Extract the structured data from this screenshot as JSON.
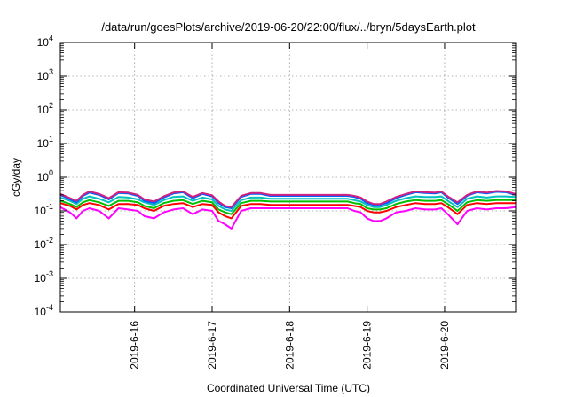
{
  "chart_data": {
    "type": "line",
    "title": "/data/run/goesPlots/archive/2019-06-20/22:00/flux/../bryn/5daysEarth.plot",
    "xlabel": "Coordinated Universal Time (UTC)",
    "ylabel": "cGy/day",
    "yscale": "log",
    "ylim": [
      0.0001,
      10000
    ],
    "y_ticks": [
      {
        "value": 0.0001,
        "base": "10",
        "exp": "-4"
      },
      {
        "value": 0.001,
        "base": "10",
        "exp": "-3"
      },
      {
        "value": 0.01,
        "base": "10",
        "exp": "-2"
      },
      {
        "value": 0.1,
        "base": "10",
        "exp": "-1"
      },
      {
        "value": 1,
        "base": "10",
        "exp": "0"
      },
      {
        "value": 10,
        "base": "10",
        "exp": "1"
      },
      {
        "value": 100,
        "base": "10",
        "exp": "2"
      },
      {
        "value": 1000,
        "base": "10",
        "exp": "3"
      },
      {
        "value": 10000,
        "base": "10",
        "exp": "4"
      }
    ],
    "xlim": [
      "2019-06-15T01:00",
      "2019-06-20T22:00"
    ],
    "x_ticks": [
      {
        "value": "2019-06-16T00:00",
        "label": "2019-6-16"
      },
      {
        "value": "2019-06-17T00:00",
        "label": "2019-6-17"
      },
      {
        "value": "2019-06-18T00:00",
        "label": "2019-6-18"
      },
      {
        "value": "2019-06-19T00:00",
        "label": "2019-6-19"
      },
      {
        "value": "2019-06-20T00:00",
        "label": "2019-6-20"
      }
    ],
    "grid": true,
    "legend": "none",
    "series": [
      {
        "color": "#ff00ff",
        "x": [
          "2019-06-15T01:00",
          "2019-06-15T04:00",
          "2019-06-15T06:00",
          "2019-06-15T08:00",
          "2019-06-15T10:00",
          "2019-06-15T13:00",
          "2019-06-15T16:00",
          "2019-06-15T19:00",
          "2019-06-15T22:00",
          "2019-06-16T01:00",
          "2019-06-16T03:00",
          "2019-06-16T06:00",
          "2019-06-16T09:00",
          "2019-06-16T12:00",
          "2019-06-16T15:00",
          "2019-06-16T18:00",
          "2019-06-16T21:00",
          "2019-06-17T00:00",
          "2019-06-17T02:00",
          "2019-06-17T04:00",
          "2019-06-17T06:00",
          "2019-06-17T09:00",
          "2019-06-17T12:00",
          "2019-06-17T15:00",
          "2019-06-17T18:00",
          "2019-06-18T00:00",
          "2019-06-18T06:00",
          "2019-06-18T12:00",
          "2019-06-18T18:00",
          "2019-06-18T20:00",
          "2019-06-18T22:00",
          "2019-06-19T00:00",
          "2019-06-19T02:00",
          "2019-06-19T04:00",
          "2019-06-19T06:00",
          "2019-06-19T09:00",
          "2019-06-19T12:00",
          "2019-06-19T15:00",
          "2019-06-19T18:00",
          "2019-06-19T21:00",
          "2019-06-19T23:00",
          "2019-06-20T01:00",
          "2019-06-20T04:00",
          "2019-06-20T07:00",
          "2019-06-20T10:00",
          "2019-06-20T13:00",
          "2019-06-20T16:00",
          "2019-06-20T19:00",
          "2019-06-20T22:00"
        ],
        "values": [
          0.13,
          0.09,
          0.06,
          0.1,
          0.12,
          0.1,
          0.06,
          0.12,
          0.11,
          0.1,
          0.07,
          0.06,
          0.09,
          0.11,
          0.12,
          0.08,
          0.11,
          0.1,
          0.05,
          0.04,
          0.03,
          0.1,
          0.12,
          0.12,
          0.12,
          0.12,
          0.12,
          0.12,
          0.12,
          0.1,
          0.09,
          0.06,
          0.05,
          0.05,
          0.06,
          0.09,
          0.1,
          0.12,
          0.11,
          0.11,
          0.12,
          0.08,
          0.04,
          0.1,
          0.12,
          0.11,
          0.12,
          0.12,
          0.13
        ]
      },
      {
        "color": "#ff0000",
        "x": [
          "2019-06-15T01:00",
          "2019-06-15T04:00",
          "2019-06-15T06:00",
          "2019-06-15T08:00",
          "2019-06-15T10:00",
          "2019-06-15T13:00",
          "2019-06-15T16:00",
          "2019-06-15T19:00",
          "2019-06-15T22:00",
          "2019-06-16T01:00",
          "2019-06-16T03:00",
          "2019-06-16T06:00",
          "2019-06-16T09:00",
          "2019-06-16T12:00",
          "2019-06-16T15:00",
          "2019-06-16T18:00",
          "2019-06-16T21:00",
          "2019-06-17T00:00",
          "2019-06-17T02:00",
          "2019-06-17T04:00",
          "2019-06-17T06:00",
          "2019-06-17T09:00",
          "2019-06-17T12:00",
          "2019-06-17T15:00",
          "2019-06-17T18:00",
          "2019-06-18T00:00",
          "2019-06-18T06:00",
          "2019-06-18T12:00",
          "2019-06-18T18:00",
          "2019-06-18T20:00",
          "2019-06-18T22:00",
          "2019-06-19T00:00",
          "2019-06-19T02:00",
          "2019-06-19T04:00",
          "2019-06-19T06:00",
          "2019-06-19T09:00",
          "2019-06-19T12:00",
          "2019-06-19T15:00",
          "2019-06-19T18:00",
          "2019-06-19T21:00",
          "2019-06-19T23:00",
          "2019-06-20T01:00",
          "2019-06-20T04:00",
          "2019-06-20T07:00",
          "2019-06-20T10:00",
          "2019-06-20T13:00",
          "2019-06-20T16:00",
          "2019-06-20T19:00",
          "2019-06-20T22:00"
        ],
        "values": [
          0.17,
          0.14,
          0.11,
          0.15,
          0.17,
          0.15,
          0.11,
          0.16,
          0.16,
          0.15,
          0.12,
          0.1,
          0.14,
          0.16,
          0.17,
          0.13,
          0.16,
          0.15,
          0.09,
          0.07,
          0.06,
          0.14,
          0.16,
          0.16,
          0.15,
          0.15,
          0.15,
          0.15,
          0.15,
          0.14,
          0.13,
          0.1,
          0.09,
          0.09,
          0.1,
          0.13,
          0.15,
          0.17,
          0.16,
          0.16,
          0.17,
          0.13,
          0.08,
          0.15,
          0.17,
          0.16,
          0.17,
          0.17,
          0.17
        ]
      },
      {
        "color": "#00c000",
        "x": [
          "2019-06-15T01:00",
          "2019-06-15T04:00",
          "2019-06-15T06:00",
          "2019-06-15T08:00",
          "2019-06-15T10:00",
          "2019-06-15T13:00",
          "2019-06-15T16:00",
          "2019-06-15T19:00",
          "2019-06-15T22:00",
          "2019-06-16T01:00",
          "2019-06-16T03:00",
          "2019-06-16T06:00",
          "2019-06-16T09:00",
          "2019-06-16T12:00",
          "2019-06-16T15:00",
          "2019-06-16T18:00",
          "2019-06-16T21:00",
          "2019-06-17T00:00",
          "2019-06-17T02:00",
          "2019-06-17T04:00",
          "2019-06-17T06:00",
          "2019-06-17T09:00",
          "2019-06-17T12:00",
          "2019-06-17T15:00",
          "2019-06-17T18:00",
          "2019-06-18T00:00",
          "2019-06-18T06:00",
          "2019-06-18T12:00",
          "2019-06-18T18:00",
          "2019-06-18T20:00",
          "2019-06-18T22:00",
          "2019-06-19T00:00",
          "2019-06-19T02:00",
          "2019-06-19T04:00",
          "2019-06-19T06:00",
          "2019-06-19T09:00",
          "2019-06-19T12:00",
          "2019-06-19T15:00",
          "2019-06-19T18:00",
          "2019-06-19T21:00",
          "2019-06-19T23:00",
          "2019-06-20T01:00",
          "2019-06-20T04:00",
          "2019-06-20T07:00",
          "2019-06-20T10:00",
          "2019-06-20T13:00",
          "2019-06-20T16:00",
          "2019-06-20T19:00",
          "2019-06-20T22:00"
        ],
        "values": [
          0.2,
          0.16,
          0.13,
          0.18,
          0.21,
          0.18,
          0.14,
          0.2,
          0.2,
          0.18,
          0.14,
          0.12,
          0.17,
          0.2,
          0.21,
          0.16,
          0.2,
          0.18,
          0.11,
          0.09,
          0.08,
          0.17,
          0.2,
          0.2,
          0.19,
          0.19,
          0.19,
          0.19,
          0.19,
          0.17,
          0.16,
          0.12,
          0.11,
          0.11,
          0.12,
          0.16,
          0.19,
          0.21,
          0.2,
          0.2,
          0.21,
          0.16,
          0.1,
          0.18,
          0.21,
          0.2,
          0.21,
          0.21,
          0.21
        ]
      },
      {
        "color": "#00c0c0",
        "x": [
          "2019-06-15T01:00",
          "2019-06-15T04:00",
          "2019-06-15T06:00",
          "2019-06-15T08:00",
          "2019-06-15T10:00",
          "2019-06-15T13:00",
          "2019-06-15T16:00",
          "2019-06-15T19:00",
          "2019-06-15T22:00",
          "2019-06-16T01:00",
          "2019-06-16T03:00",
          "2019-06-16T06:00",
          "2019-06-16T09:00",
          "2019-06-16T12:00",
          "2019-06-16T15:00",
          "2019-06-16T18:00",
          "2019-06-16T21:00",
          "2019-06-17T00:00",
          "2019-06-17T02:00",
          "2019-06-17T04:00",
          "2019-06-17T06:00",
          "2019-06-17T09:00",
          "2019-06-17T12:00",
          "2019-06-17T15:00",
          "2019-06-17T18:00",
          "2019-06-18T00:00",
          "2019-06-18T06:00",
          "2019-06-18T12:00",
          "2019-06-18T18:00",
          "2019-06-18T20:00",
          "2019-06-18T22:00",
          "2019-06-19T00:00",
          "2019-06-19T02:00",
          "2019-06-19T04:00",
          "2019-06-19T06:00",
          "2019-06-19T09:00",
          "2019-06-19T12:00",
          "2019-06-19T15:00",
          "2019-06-19T18:00",
          "2019-06-19T21:00",
          "2019-06-19T23:00",
          "2019-06-20T01:00",
          "2019-06-20T04:00",
          "2019-06-20T07:00",
          "2019-06-20T10:00",
          "2019-06-20T13:00",
          "2019-06-20T16:00",
          "2019-06-20T19:00",
          "2019-06-20T22:00"
        ],
        "values": [
          0.25,
          0.2,
          0.16,
          0.23,
          0.27,
          0.23,
          0.18,
          0.26,
          0.25,
          0.22,
          0.18,
          0.15,
          0.21,
          0.26,
          0.27,
          0.2,
          0.25,
          0.22,
          0.14,
          0.11,
          0.1,
          0.21,
          0.25,
          0.25,
          0.23,
          0.23,
          0.23,
          0.23,
          0.23,
          0.21,
          0.19,
          0.15,
          0.13,
          0.13,
          0.15,
          0.2,
          0.24,
          0.27,
          0.26,
          0.26,
          0.27,
          0.2,
          0.13,
          0.23,
          0.27,
          0.25,
          0.27,
          0.27,
          0.26
        ]
      },
      {
        "color": "#0060ff",
        "x": [
          "2019-06-15T01:00",
          "2019-06-15T04:00",
          "2019-06-15T06:00",
          "2019-06-15T08:00",
          "2019-06-15T10:00",
          "2019-06-15T13:00",
          "2019-06-15T16:00",
          "2019-06-15T19:00",
          "2019-06-15T22:00",
          "2019-06-16T01:00",
          "2019-06-16T03:00",
          "2019-06-16T06:00",
          "2019-06-16T09:00",
          "2019-06-16T12:00",
          "2019-06-16T15:00",
          "2019-06-16T18:00",
          "2019-06-16T21:00",
          "2019-06-17T00:00",
          "2019-06-17T02:00",
          "2019-06-17T04:00",
          "2019-06-17T06:00",
          "2019-06-17T09:00",
          "2019-06-17T12:00",
          "2019-06-17T15:00",
          "2019-06-17T18:00",
          "2019-06-18T00:00",
          "2019-06-18T06:00",
          "2019-06-18T12:00",
          "2019-06-18T18:00",
          "2019-06-18T20:00",
          "2019-06-18T22:00",
          "2019-06-19T00:00",
          "2019-06-19T02:00",
          "2019-06-19T04:00",
          "2019-06-19T06:00",
          "2019-06-19T09:00",
          "2019-06-19T12:00",
          "2019-06-19T15:00",
          "2019-06-19T18:00",
          "2019-06-19T21:00",
          "2019-06-19T23:00",
          "2019-06-20T01:00",
          "2019-06-20T04:00",
          "2019-06-20T07:00",
          "2019-06-20T10:00",
          "2019-06-20T13:00",
          "2019-06-20T16:00",
          "2019-06-20T19:00",
          "2019-06-20T22:00"
        ],
        "values": [
          0.3,
          0.22,
          0.18,
          0.28,
          0.35,
          0.3,
          0.22,
          0.34,
          0.33,
          0.28,
          0.2,
          0.17,
          0.25,
          0.33,
          0.36,
          0.24,
          0.32,
          0.27,
          0.17,
          0.13,
          0.12,
          0.26,
          0.32,
          0.32,
          0.28,
          0.28,
          0.28,
          0.28,
          0.28,
          0.26,
          0.23,
          0.17,
          0.15,
          0.15,
          0.17,
          0.24,
          0.3,
          0.36,
          0.34,
          0.33,
          0.36,
          0.25,
          0.16,
          0.28,
          0.36,
          0.33,
          0.37,
          0.36,
          0.3
        ]
      },
      {
        "color": "#d02080",
        "x": [
          "2019-06-15T01:00",
          "2019-06-15T04:00",
          "2019-06-15T06:00",
          "2019-06-15T08:00",
          "2019-06-15T10:00",
          "2019-06-15T13:00",
          "2019-06-15T16:00",
          "2019-06-15T19:00",
          "2019-06-15T22:00",
          "2019-06-16T01:00",
          "2019-06-16T03:00",
          "2019-06-16T06:00",
          "2019-06-16T09:00",
          "2019-06-16T12:00",
          "2019-06-16T15:00",
          "2019-06-16T18:00",
          "2019-06-16T21:00",
          "2019-06-17T00:00",
          "2019-06-17T02:00",
          "2019-06-17T04:00",
          "2019-06-17T06:00",
          "2019-06-17T09:00",
          "2019-06-17T12:00",
          "2019-06-17T15:00",
          "2019-06-17T18:00",
          "2019-06-18T00:00",
          "2019-06-18T06:00",
          "2019-06-18T12:00",
          "2019-06-18T18:00",
          "2019-06-18T20:00",
          "2019-06-18T22:00",
          "2019-06-19T00:00",
          "2019-06-19T02:00",
          "2019-06-19T04:00",
          "2019-06-19T06:00",
          "2019-06-19T09:00",
          "2019-06-19T12:00",
          "2019-06-19T15:00",
          "2019-06-19T18:00",
          "2019-06-19T21:00",
          "2019-06-19T23:00",
          "2019-06-20T01:00",
          "2019-06-20T04:00",
          "2019-06-20T07:00",
          "2019-06-20T10:00",
          "2019-06-20T13:00",
          "2019-06-20T16:00",
          "2019-06-20T19:00",
          "2019-06-20T22:00"
        ],
        "values": [
          0.32,
          0.24,
          0.2,
          0.3,
          0.38,
          0.32,
          0.24,
          0.36,
          0.35,
          0.3,
          0.22,
          0.19,
          0.27,
          0.35,
          0.38,
          0.26,
          0.34,
          0.29,
          0.19,
          0.14,
          0.13,
          0.28,
          0.34,
          0.34,
          0.3,
          0.3,
          0.3,
          0.3,
          0.3,
          0.28,
          0.25,
          0.19,
          0.16,
          0.16,
          0.19,
          0.26,
          0.32,
          0.38,
          0.36,
          0.35,
          0.38,
          0.27,
          0.18,
          0.3,
          0.38,
          0.35,
          0.39,
          0.38,
          0.32
        ]
      }
    ]
  }
}
